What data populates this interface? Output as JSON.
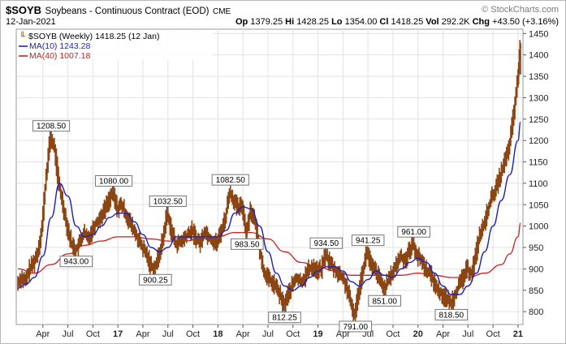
{
  "header": {
    "symbol": "$SOYB",
    "title": "Soybeans - Continuous Contract (EOD)",
    "exchange": "CME",
    "brand": "© StockCharts.com",
    "date": "12-Jan-2021",
    "open_label": "Op",
    "open": "1379.25",
    "high_label": "Hi",
    "high": "1428.25",
    "low_label": "Lo",
    "low": "1354.00",
    "close_label": "Cl",
    "close": "1418.25",
    "vol_label": "Vol",
    "vol": "292.2K",
    "chg_label": "Chg",
    "chg": "+43.50 (+3.16%)"
  },
  "legend": {
    "price": "$SOYB (Weekly) 1418.25 (12 Jan)",
    "ma10": "MA(10) 1243.28",
    "ma40": "MA(40) 1007.18"
  },
  "colors": {
    "bars": "#8b4513",
    "ma10": "#1f1fbf",
    "ma40": "#cc2020",
    "grid": "#e2e2e2"
  },
  "chart_data": {
    "type": "line",
    "ylim": [
      770,
      1460
    ],
    "y_ticks": [
      800,
      850,
      900,
      950,
      1000,
      1050,
      1100,
      1150,
      1200,
      1250,
      1300,
      1350,
      1400,
      1450
    ],
    "x_ticks": [
      {
        "label": "Apr",
        "t": 3
      },
      {
        "label": "Jul",
        "t": 6
      },
      {
        "label": "Oct",
        "t": 9
      },
      {
        "label": "17",
        "t": 12
      },
      {
        "label": "Apr",
        "t": 15
      },
      {
        "label": "Jul",
        "t": 18
      },
      {
        "label": "Oct",
        "t": 21
      },
      {
        "label": "18",
        "t": 24
      },
      {
        "label": "Apr",
        "t": 27
      },
      {
        "label": "Jul",
        "t": 30
      },
      {
        "label": "Oct",
        "t": 33
      },
      {
        "label": "19",
        "t": 36
      },
      {
        "label": "Apr",
        "t": 39
      },
      {
        "label": "Jul",
        "t": 42
      },
      {
        "label": "Oct",
        "t": 45
      },
      {
        "label": "20",
        "t": 48
      },
      {
        "label": "Apr",
        "t": 51
      },
      {
        "label": "Jul",
        "t": 54
      },
      {
        "label": "Oct",
        "t": 57
      },
      {
        "label": "21",
        "t": 60
      }
    ],
    "price_points": [
      [
        0,
        865
      ],
      [
        0.5,
        880
      ],
      [
        1,
        870
      ],
      [
        1.5,
        900
      ],
      [
        2,
        915
      ],
      [
        2.5,
        940
      ],
      [
        3,
        1000
      ],
      [
        3.5,
        1120
      ],
      [
        4,
        1208.5
      ],
      [
        4.5,
        1180
      ],
      [
        5,
        1100
      ],
      [
        5.5,
        1050
      ],
      [
        6,
        1000
      ],
      [
        6.5,
        960
      ],
      [
        7,
        943
      ],
      [
        7.5,
        960
      ],
      [
        8,
        985
      ],
      [
        8.5,
        970
      ],
      [
        9,
        990
      ],
      [
        9.5,
        1010
      ],
      [
        10,
        1020
      ],
      [
        10.5,
        1040
      ],
      [
        11,
        1060
      ],
      [
        11.5,
        1080
      ],
      [
        12,
        1040
      ],
      [
        12.5,
        1050
      ],
      [
        13,
        1030
      ],
      [
        13.5,
        1010
      ],
      [
        14,
        990
      ],
      [
        14.5,
        970
      ],
      [
        15,
        950
      ],
      [
        15.5,
        935
      ],
      [
        16,
        910
      ],
      [
        16.5,
        900.25
      ],
      [
        17,
        930
      ],
      [
        17.5,
        970
      ],
      [
        18,
        1032.5
      ],
      [
        18.5,
        990
      ],
      [
        19,
        960
      ],
      [
        19.5,
        960
      ],
      [
        20,
        970
      ],
      [
        20.5,
        980
      ],
      [
        21,
        990
      ],
      [
        21.5,
        970
      ],
      [
        22,
        960
      ],
      [
        22.5,
        990
      ],
      [
        23,
        975
      ],
      [
        23.5,
        965
      ],
      [
        24,
        960
      ],
      [
        24.5,
        990
      ],
      [
        25,
        1020
      ],
      [
        25.5,
        1082.5
      ],
      [
        26,
        1060
      ],
      [
        26.5,
        1040
      ],
      [
        27,
        1050
      ],
      [
        27.5,
        983.5
      ],
      [
        28,
        1040
      ],
      [
        28.5,
        1010
      ],
      [
        29,
        960
      ],
      [
        29.5,
        900
      ],
      [
        30,
        880
      ],
      [
        30.5,
        870
      ],
      [
        31,
        860
      ],
      [
        31.5,
        840
      ],
      [
        32,
        812.25
      ],
      [
        32.5,
        840
      ],
      [
        33,
        860
      ],
      [
        33.5,
        880
      ],
      [
        34,
        870
      ],
      [
        34.5,
        880
      ],
      [
        35,
        900
      ],
      [
        35.5,
        905
      ],
      [
        36,
        895
      ],
      [
        36.5,
        900
      ],
      [
        37,
        934.5
      ],
      [
        37.5,
        915
      ],
      [
        38,
        900
      ],
      [
        38.5,
        890
      ],
      [
        39,
        880
      ],
      [
        39.5,
        860
      ],
      [
        40,
        820
      ],
      [
        40.5,
        791
      ],
      [
        41,
        850
      ],
      [
        41.5,
        900
      ],
      [
        42,
        941.25
      ],
      [
        42.5,
        905
      ],
      [
        43,
        895
      ],
      [
        43.5,
        875
      ],
      [
        44,
        851
      ],
      [
        44.5,
        870
      ],
      [
        45,
        890
      ],
      [
        45.5,
        910
      ],
      [
        46,
        930
      ],
      [
        46.5,
        920
      ],
      [
        47,
        940
      ],
      [
        47.5,
        961
      ],
      [
        48,
        930
      ],
      [
        48.5,
        920
      ],
      [
        49,
        900
      ],
      [
        49.5,
        890
      ],
      [
        50,
        870
      ],
      [
        50.5,
        850
      ],
      [
        51,
        840
      ],
      [
        51.5,
        830
      ],
      [
        52,
        818.5
      ],
      [
        52.5,
        840
      ],
      [
        53,
        860
      ],
      [
        53.5,
        880
      ],
      [
        54,
        900
      ],
      [
        54.5,
        890
      ],
      [
        55,
        930
      ],
      [
        55.5,
        980
      ],
      [
        56,
        1000
      ],
      [
        56.5,
        1040
      ],
      [
        57,
        1070
      ],
      [
        57.5,
        1090
      ],
      [
        58,
        1120
      ],
      [
        58.5,
        1150
      ],
      [
        59,
        1180
      ],
      [
        59.5,
        1250
      ],
      [
        60,
        1330
      ],
      [
        60.3,
        1418.25
      ]
    ],
    "ma10_points": [
      [
        0,
        855
      ],
      [
        1,
        865
      ],
      [
        2,
        880
      ],
      [
        3,
        930
      ],
      [
        4,
        1020
      ],
      [
        5,
        1100
      ],
      [
        6,
        1070
      ],
      [
        7,
        1000
      ],
      [
        8,
        975
      ],
      [
        9,
        980
      ],
      [
        10,
        1000
      ],
      [
        11,
        1020
      ],
      [
        12,
        1030
      ],
      [
        13,
        1030
      ],
      [
        14,
        1010
      ],
      [
        15,
        980
      ],
      [
        16,
        950
      ],
      [
        17,
        940
      ],
      [
        18,
        950
      ],
      [
        19,
        975
      ],
      [
        20,
        975
      ],
      [
        21,
        975
      ],
      [
        22,
        975
      ],
      [
        23,
        975
      ],
      [
        24,
        975
      ],
      [
        25,
        990
      ],
      [
        26,
        1030
      ],
      [
        27,
        1045
      ],
      [
        28,
        1040
      ],
      [
        29,
        1000
      ],
      [
        30,
        940
      ],
      [
        31,
        890
      ],
      [
        32,
        860
      ],
      [
        33,
        850
      ],
      [
        34,
        860
      ],
      [
        35,
        880
      ],
      [
        36,
        895
      ],
      [
        37,
        905
      ],
      [
        38,
        905
      ],
      [
        39,
        895
      ],
      [
        40,
        870
      ],
      [
        41,
        860
      ],
      [
        42,
        875
      ],
      [
        43,
        895
      ],
      [
        44,
        885
      ],
      [
        45,
        880
      ],
      [
        46,
        900
      ],
      [
        47,
        915
      ],
      [
        48,
        925
      ],
      [
        49,
        915
      ],
      [
        50,
        890
      ],
      [
        51,
        860
      ],
      [
        52,
        840
      ],
      [
        53,
        840
      ],
      [
        54,
        860
      ],
      [
        55,
        890
      ],
      [
        56,
        940
      ],
      [
        57,
        1000
      ],
      [
        58,
        1060
      ],
      [
        59,
        1120
      ],
      [
        60,
        1200
      ],
      [
        60.3,
        1243.28
      ]
    ],
    "ma40_points": [
      [
        0,
        900
      ],
      [
        2,
        890
      ],
      [
        4,
        910
      ],
      [
        6,
        935
      ],
      [
        8,
        955
      ],
      [
        10,
        965
      ],
      [
        12,
        975
      ],
      [
        14,
        975
      ],
      [
        16,
        970
      ],
      [
        18,
        965
      ],
      [
        20,
        965
      ],
      [
        22,
        970
      ],
      [
        24,
        975
      ],
      [
        26,
        985
      ],
      [
        28,
        985
      ],
      [
        30,
        970
      ],
      [
        32,
        940
      ],
      [
        34,
        915
      ],
      [
        36,
        905
      ],
      [
        38,
        895
      ],
      [
        40,
        885
      ],
      [
        42,
        885
      ],
      [
        44,
        885
      ],
      [
        46,
        885
      ],
      [
        48,
        890
      ],
      [
        50,
        885
      ],
      [
        52,
        880
      ],
      [
        54,
        880
      ],
      [
        56,
        890
      ],
      [
        58,
        910
      ],
      [
        59,
        935
      ],
      [
        60,
        975
      ],
      [
        60.3,
        1007.18
      ]
    ],
    "annotations": [
      {
        "label": "1208.50",
        "t": 4,
        "value": 1208.5,
        "pos": "above"
      },
      {
        "label": "943.00",
        "t": 7,
        "value": 943,
        "pos": "below"
      },
      {
        "label": "1080.00",
        "t": 11.5,
        "value": 1080,
        "pos": "above"
      },
      {
        "label": "900.25",
        "t": 16.5,
        "value": 900.25,
        "pos": "below"
      },
      {
        "label": "1032.50",
        "t": 18,
        "value": 1032.5,
        "pos": "above"
      },
      {
        "label": "1082.50",
        "t": 25.5,
        "value": 1082.5,
        "pos": "above"
      },
      {
        "label": "983.50",
        "t": 27.5,
        "value": 983.5,
        "pos": "below"
      },
      {
        "label": "812.25",
        "t": 32,
        "value": 812.25,
        "pos": "below"
      },
      {
        "label": "934.50",
        "t": 37,
        "value": 934.5,
        "pos": "above"
      },
      {
        "label": "791.00",
        "t": 40.5,
        "value": 791,
        "pos": "below"
      },
      {
        "label": "941.25",
        "t": 42,
        "value": 941.25,
        "pos": "above"
      },
      {
        "label": "851.00",
        "t": 44,
        "value": 851,
        "pos": "below"
      },
      {
        "label": "961.00",
        "t": 47.5,
        "value": 961,
        "pos": "above"
      },
      {
        "label": "818.50",
        "t": 52,
        "value": 818.5,
        "pos": "below"
      }
    ]
  }
}
